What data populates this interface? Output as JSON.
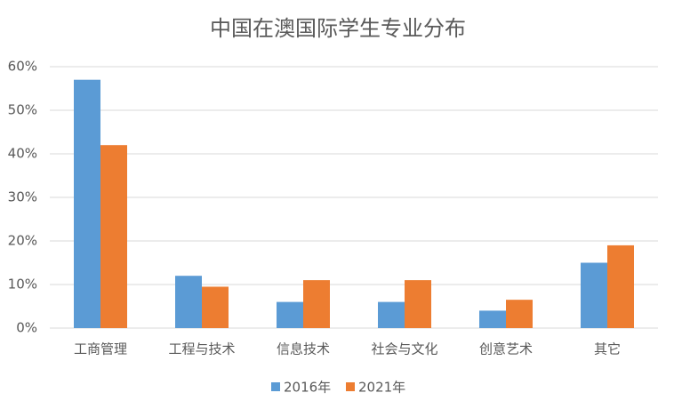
{
  "chart_data": {
    "type": "bar",
    "title": "中国在澳国际学生专业分布",
    "categories": [
      "工商管理",
      "工程与技术",
      "信息技术",
      "社会与文化",
      "创意艺术",
      "其它"
    ],
    "series": [
      {
        "name": "2016年",
        "color": "#5b9bd5",
        "values": [
          57,
          12,
          6,
          6,
          4,
          15
        ]
      },
      {
        "name": "2021年",
        "color": "#ed7d31",
        "values": [
          42,
          9.5,
          11,
          11,
          6.5,
          19
        ]
      }
    ],
    "ylim": [
      0,
      60
    ],
    "yticks": [
      {
        "value": 0,
        "label": "0%"
      },
      {
        "value": 10,
        "label": "10%"
      },
      {
        "value": 20,
        "label": "20%"
      },
      {
        "value": 30,
        "label": "30%"
      },
      {
        "value": 40,
        "label": "40%"
      },
      {
        "value": 50,
        "label": "50%"
      },
      {
        "value": 60,
        "label": "60%"
      }
    ],
    "grid": true,
    "legend": "bottom"
  }
}
